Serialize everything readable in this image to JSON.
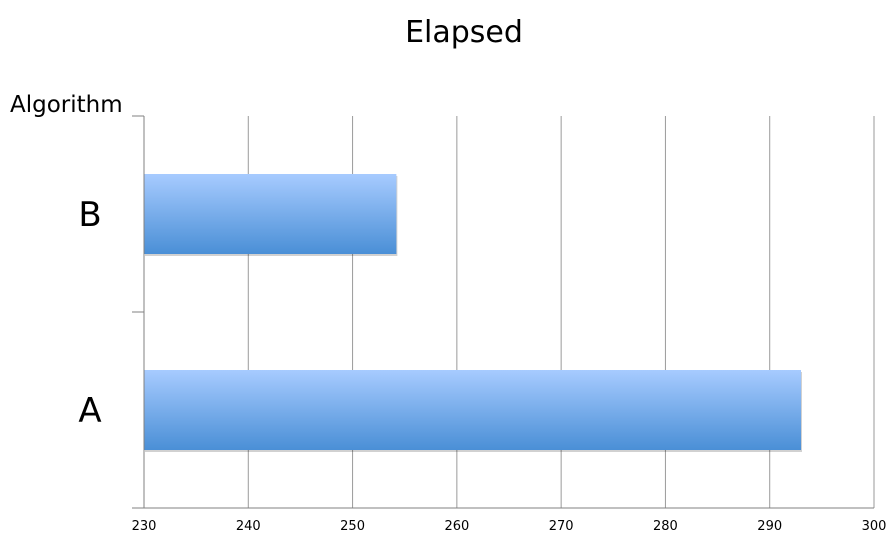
{
  "chart_data": {
    "type": "bar",
    "orientation": "horizontal",
    "title": "Elapsed",
    "ylabel": "Algorithm",
    "xlabel": "",
    "categories": [
      "A",
      "B"
    ],
    "values": [
      293,
      254.2
    ],
    "xlim": [
      230,
      300
    ],
    "xticks": [
      "230",
      "240",
      "250",
      "260",
      "270",
      "280",
      "290",
      "300"
    ],
    "grid": true,
    "legend": "none",
    "bar_color_top": "#a7cbff",
    "bar_color_bottom": "#4a8fd6"
  }
}
